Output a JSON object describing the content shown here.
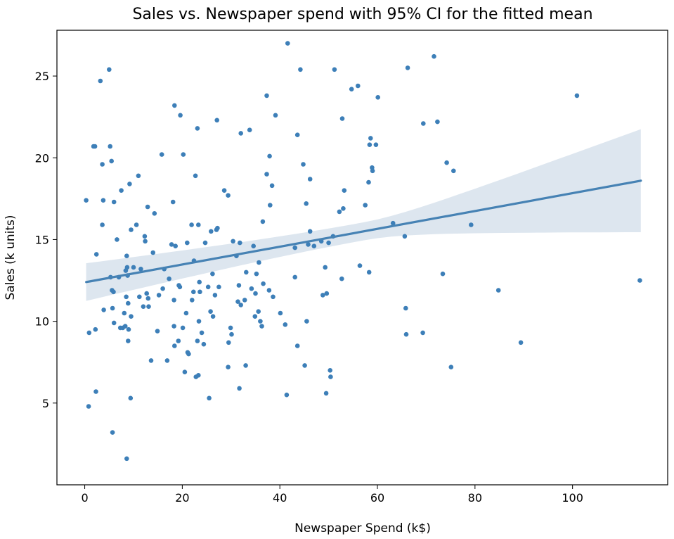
{
  "chart_data": {
    "type": "scatter",
    "title": "Sales vs. Newspaper spend with 95% CI for the fitted mean",
    "xlabel": "Newspaper Spend (k$)",
    "ylabel": "Sales (k units)",
    "xlim": [
      -5.7,
      119.5
    ],
    "ylim": [
      0,
      27.8
    ],
    "xticks": [
      0,
      20,
      40,
      60,
      80,
      100
    ],
    "yticks": [
      5,
      10,
      15,
      20,
      25
    ],
    "grid": false,
    "colors": {
      "points": "#3d7fb8",
      "line": "#4682b4",
      "band": "#dde6ef"
    },
    "regression": {
      "x": [
        0.3,
        114.0
      ],
      "y": [
        12.4,
        18.6
      ],
      "ci_lower_at_ends": [
        11.3,
        15.4
      ],
      "ci_upper_at_ends": [
        13.6,
        21.7
      ]
    },
    "points": [
      [
        0.3,
        17.4
      ],
      [
        0.8,
        4.8
      ],
      [
        0.9,
        9.3
      ],
      [
        1.8,
        20.7
      ],
      [
        2.1,
        20.7
      ],
      [
        2.2,
        9.5
      ],
      [
        2.3,
        5.7
      ],
      [
        2.4,
        14.1
      ],
      [
        3.2,
        24.7
      ],
      [
        3.6,
        19.6
      ],
      [
        3.6,
        15.9
      ],
      [
        3.8,
        17.4
      ],
      [
        3.9,
        10.7
      ],
      [
        5.0,
        25.4
      ],
      [
        5.2,
        20.7
      ],
      [
        5.3,
        12.7
      ],
      [
        5.5,
        19.8
      ],
      [
        5.6,
        11.9
      ],
      [
        5.7,
        10.8
      ],
      [
        5.7,
        3.2
      ],
      [
        6.0,
        17.3
      ],
      [
        5.9,
        11.8
      ],
      [
        6.0,
        9.9
      ],
      [
        6.6,
        15.0
      ],
      [
        7.0,
        12.7
      ],
      [
        7.3,
        9.6
      ],
      [
        7.5,
        18.0
      ],
      [
        7.8,
        9.6
      ],
      [
        8.1,
        10.5
      ],
      [
        8.3,
        9.7
      ],
      [
        8.4,
        13.1
      ],
      [
        8.5,
        11.5
      ],
      [
        8.6,
        1.6
      ],
      [
        8.6,
        14.0
      ],
      [
        8.7,
        13.3
      ],
      [
        8.8,
        12.8
      ],
      [
        8.9,
        11.1
      ],
      [
        8.9,
        8.8
      ],
      [
        9.0,
        9.5
      ],
      [
        9.2,
        18.4
      ],
      [
        9.4,
        5.3
      ],
      [
        9.5,
        15.6
      ],
      [
        9.5,
        10.3
      ],
      [
        10.0,
        13.3
      ],
      [
        10.6,
        15.9
      ],
      [
        11.0,
        18.9
      ],
      [
        11.2,
        11.5
      ],
      [
        11.5,
        13.2
      ],
      [
        12.0,
        10.9
      ],
      [
        12.3,
        15.2
      ],
      [
        12.4,
        14.9
      ],
      [
        12.7,
        11.7
      ],
      [
        12.9,
        17.0
      ],
      [
        13.0,
        11.4
      ],
      [
        13.1,
        10.9
      ],
      [
        13.6,
        7.6
      ],
      [
        14.0,
        14.2
      ],
      [
        14.3,
        16.6
      ],
      [
        14.9,
        9.4
      ],
      [
        15.2,
        11.6
      ],
      [
        15.8,
        20.2
      ],
      [
        16.0,
        12.0
      ],
      [
        16.3,
        13.2
      ],
      [
        16.9,
        7.6
      ],
      [
        17.3,
        12.6
      ],
      [
        17.8,
        14.7
      ],
      [
        18.1,
        17.3
      ],
      [
        18.3,
        11.3
      ],
      [
        18.3,
        9.7
      ],
      [
        18.4,
        8.5
      ],
      [
        18.4,
        23.2
      ],
      [
        18.6,
        14.6
      ],
      [
        19.2,
        8.8
      ],
      [
        19.3,
        12.2
      ],
      [
        19.5,
        12.1
      ],
      [
        19.6,
        22.6
      ],
      [
        20.1,
        9.6
      ],
      [
        20.2,
        20.2
      ],
      [
        20.5,
        6.9
      ],
      [
        20.8,
        10.5
      ],
      [
        21.0,
        14.8
      ],
      [
        21.1,
        8.1
      ],
      [
        21.3,
        8.0
      ],
      [
        21.9,
        15.9
      ],
      [
        22.0,
        11.3
      ],
      [
        22.3,
        11.8
      ],
      [
        22.4,
        13.7
      ],
      [
        22.7,
        18.9
      ],
      [
        22.8,
        6.6
      ],
      [
        23.1,
        8.8
      ],
      [
        23.1,
        21.8
      ],
      [
        23.3,
        15.9
      ],
      [
        23.3,
        6.7
      ],
      [
        23.4,
        10.0
      ],
      [
        23.5,
        12.4
      ],
      [
        23.6,
        11.8
      ],
      [
        24.0,
        9.3
      ],
      [
        24.4,
        8.6
      ],
      [
        24.7,
        14.8
      ],
      [
        25.3,
        12.1
      ],
      [
        25.5,
        5.3
      ],
      [
        25.8,
        10.6
      ],
      [
        25.9,
        15.5
      ],
      [
        26.2,
        12.9
      ],
      [
        26.3,
        10.3
      ],
      [
        26.7,
        11.6
      ],
      [
        27.0,
        15.6
      ],
      [
        27.1,
        22.3
      ],
      [
        27.2,
        15.7
      ],
      [
        27.5,
        12.1
      ],
      [
        28.6,
        18.0
      ],
      [
        29.4,
        17.7
      ],
      [
        29.4,
        7.2
      ],
      [
        29.5,
        8.7
      ],
      [
        29.9,
        9.6
      ],
      [
        30.1,
        9.2
      ],
      [
        30.4,
        14.9
      ],
      [
        31.1,
        14.0
      ],
      [
        31.4,
        11.2
      ],
      [
        31.6,
        12.2
      ],
      [
        31.7,
        5.9
      ],
      [
        31.8,
        14.8
      ],
      [
        32.0,
        21.5
      ],
      [
        32.0,
        11.0
      ],
      [
        32.8,
        11.3
      ],
      [
        33.0,
        7.3
      ],
      [
        33.1,
        13.0
      ],
      [
        33.8,
        21.7
      ],
      [
        34.2,
        12.0
      ],
      [
        34.6,
        14.6
      ],
      [
        34.9,
        10.3
      ],
      [
        35.0,
        11.7
      ],
      [
        35.2,
        12.9
      ],
      [
        35.6,
        10.6
      ],
      [
        35.7,
        13.6
      ],
      [
        36.0,
        10.0
      ],
      [
        36.3,
        9.7
      ],
      [
        36.5,
        16.1
      ],
      [
        36.6,
        12.3
      ],
      [
        37.3,
        19.0
      ],
      [
        37.3,
        23.8
      ],
      [
        37.8,
        11.9
      ],
      [
        37.9,
        20.1
      ],
      [
        38.0,
        17.1
      ],
      [
        38.4,
        18.3
      ],
      [
        38.6,
        11.5
      ],
      [
        39.1,
        22.6
      ],
      [
        40.1,
        10.5
      ],
      [
        41.1,
        9.8
      ],
      [
        41.4,
        5.5
      ],
      [
        41.6,
        27.0
      ],
      [
        43.1,
        12.7
      ],
      [
        43.1,
        14.5
      ],
      [
        43.6,
        21.4
      ],
      [
        43.6,
        8.5
      ],
      [
        44.2,
        25.4
      ],
      [
        44.8,
        19.6
      ],
      [
        45.1,
        7.3
      ],
      [
        45.4,
        17.2
      ],
      [
        45.5,
        10.0
      ],
      [
        45.8,
        14.7
      ],
      [
        46.2,
        15.5
      ],
      [
        46.2,
        18.7
      ],
      [
        47.0,
        14.6
      ],
      [
        48.5,
        14.9
      ],
      [
        48.8,
        11.6
      ],
      [
        49.3,
        13.3
      ],
      [
        49.5,
        5.6
      ],
      [
        49.6,
        11.7
      ],
      [
        50.0,
        14.8
      ],
      [
        50.3,
        7.0
      ],
      [
        50.4,
        6.6
      ],
      [
        50.9,
        15.2
      ],
      [
        51.2,
        25.4
      ],
      [
        52.2,
        16.7
      ],
      [
        52.7,
        12.6
      ],
      [
        52.8,
        22.4
      ],
      [
        53.2,
        18.0
      ],
      [
        53.0,
        16.9
      ],
      [
        54.7,
        24.2
      ],
      [
        56.0,
        24.4
      ],
      [
        56.4,
        13.4
      ],
      [
        57.5,
        17.1
      ],
      [
        58.2,
        18.5
      ],
      [
        58.3,
        13.0
      ],
      [
        58.4,
        20.8
      ],
      [
        58.6,
        21.2
      ],
      [
        58.9,
        19.4
      ],
      [
        59.0,
        19.2
      ],
      [
        59.7,
        20.8
      ],
      [
        60.1,
        23.7
      ],
      [
        63.2,
        16.0
      ],
      [
        65.6,
        15.2
      ],
      [
        65.8,
        10.8
      ],
      [
        65.9,
        9.2
      ],
      [
        66.2,
        25.5
      ],
      [
        69.3,
        9.3
      ],
      [
        69.4,
        22.1
      ],
      [
        71.6,
        26.2
      ],
      [
        72.3,
        22.2
      ],
      [
        73.4,
        12.9
      ],
      [
        74.2,
        19.7
      ],
      [
        75.1,
        7.2
      ],
      [
        75.6,
        19.2
      ],
      [
        79.2,
        15.9
      ],
      [
        84.8,
        11.9
      ],
      [
        89.4,
        8.7
      ],
      [
        100.9,
        23.8
      ],
      [
        113.8,
        12.5
      ]
    ]
  }
}
